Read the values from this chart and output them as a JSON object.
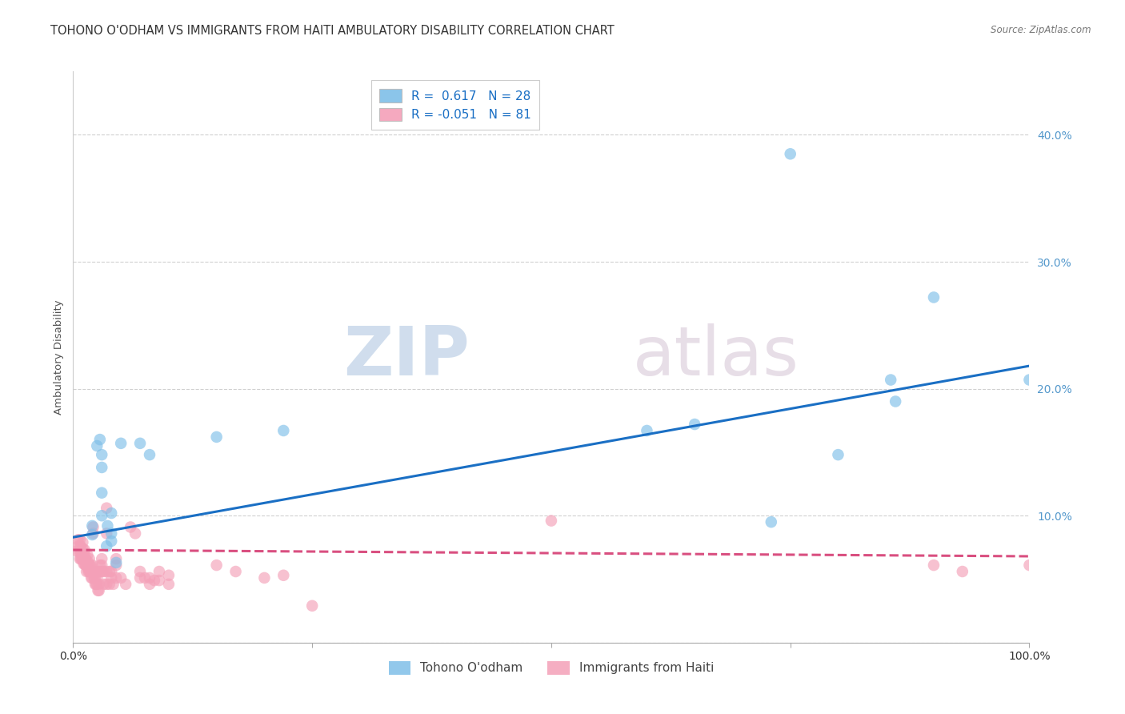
{
  "title": "TOHONO O'ODHAM VS IMMIGRANTS FROM HAITI AMBULATORY DISABILITY CORRELATION CHART",
  "source": "Source: ZipAtlas.com",
  "ylabel": "Ambulatory Disability",
  "xlim": [
    0,
    1.0
  ],
  "ylim": [
    0,
    0.45
  ],
  "xticks": [
    0.0,
    0.25,
    0.5,
    0.75,
    1.0
  ],
  "yticks": [
    0.0,
    0.1,
    0.2,
    0.3,
    0.4
  ],
  "xticklabels": [
    "0.0%",
    "",
    "",
    "",
    "100.0%"
  ],
  "yticklabels": [
    "",
    "10.0%",
    "20.0%",
    "30.0%",
    "40.0%"
  ],
  "legend_label1": "Tohono O'odham",
  "legend_label2": "Immigrants from Haiti",
  "blue_color": "#7fbfe8",
  "pink_color": "#f4a0b8",
  "blue_line_color": "#1a6fc4",
  "pink_line_color": "#d94f80",
  "tick_color": "#5599cc",
  "blue_scatter": [
    [
      0.02,
      0.085
    ],
    [
      0.02,
      0.092
    ],
    [
      0.025,
      0.155
    ],
    [
      0.028,
      0.16
    ],
    [
      0.03,
      0.1
    ],
    [
      0.03,
      0.118
    ],
    [
      0.03,
      0.138
    ],
    [
      0.03,
      0.148
    ],
    [
      0.035,
      0.076
    ],
    [
      0.036,
      0.092
    ],
    [
      0.04,
      0.08
    ],
    [
      0.04,
      0.086
    ],
    [
      0.04,
      0.102
    ],
    [
      0.045,
      0.063
    ],
    [
      0.05,
      0.157
    ],
    [
      0.07,
      0.157
    ],
    [
      0.08,
      0.148
    ],
    [
      0.15,
      0.162
    ],
    [
      0.22,
      0.167
    ],
    [
      0.6,
      0.167
    ],
    [
      0.65,
      0.172
    ],
    [
      0.73,
      0.095
    ],
    [
      0.75,
      0.385
    ],
    [
      0.8,
      0.148
    ],
    [
      0.855,
      0.207
    ],
    [
      0.86,
      0.19
    ],
    [
      0.9,
      0.272
    ],
    [
      1.0,
      0.207
    ]
  ],
  "pink_scatter": [
    [
      0.004,
      0.072
    ],
    [
      0.005,
      0.076
    ],
    [
      0.005,
      0.081
    ],
    [
      0.007,
      0.066
    ],
    [
      0.007,
      0.071
    ],
    [
      0.007,
      0.076
    ],
    [
      0.007,
      0.081
    ],
    [
      0.008,
      0.066
    ],
    [
      0.008,
      0.071
    ],
    [
      0.008,
      0.076
    ],
    [
      0.009,
      0.066
    ],
    [
      0.009,
      0.071
    ],
    [
      0.01,
      0.066
    ],
    [
      0.01,
      0.069
    ],
    [
      0.01,
      0.074
    ],
    [
      0.01,
      0.079
    ],
    [
      0.011,
      0.062
    ],
    [
      0.011,
      0.066
    ],
    [
      0.012,
      0.062
    ],
    [
      0.012,
      0.066
    ],
    [
      0.012,
      0.069
    ],
    [
      0.012,
      0.073
    ],
    [
      0.013,
      0.061
    ],
    [
      0.013,
      0.066
    ],
    [
      0.014,
      0.056
    ],
    [
      0.014,
      0.061
    ],
    [
      0.015,
      0.059
    ],
    [
      0.015,
      0.064
    ],
    [
      0.015,
      0.069
    ],
    [
      0.016,
      0.056
    ],
    [
      0.016,
      0.061
    ],
    [
      0.017,
      0.056
    ],
    [
      0.017,
      0.061
    ],
    [
      0.017,
      0.066
    ],
    [
      0.018,
      0.056
    ],
    [
      0.018,
      0.061
    ],
    [
      0.019,
      0.051
    ],
    [
      0.019,
      0.056
    ],
    [
      0.02,
      0.051
    ],
    [
      0.02,
      0.056
    ],
    [
      0.02,
      0.061
    ],
    [
      0.021,
      0.086
    ],
    [
      0.021,
      0.091
    ],
    [
      0.022,
      0.051
    ],
    [
      0.022,
      0.056
    ],
    [
      0.023,
      0.046
    ],
    [
      0.023,
      0.051
    ],
    [
      0.024,
      0.046
    ],
    [
      0.025,
      0.046
    ],
    [
      0.025,
      0.051
    ],
    [
      0.025,
      0.056
    ],
    [
      0.026,
      0.041
    ],
    [
      0.027,
      0.041
    ],
    [
      0.027,
      0.046
    ],
    [
      0.028,
      0.056
    ],
    [
      0.028,
      0.061
    ],
    [
      0.03,
      0.056
    ],
    [
      0.03,
      0.061
    ],
    [
      0.03,
      0.066
    ],
    [
      0.032,
      0.046
    ],
    [
      0.032,
      0.056
    ],
    [
      0.035,
      0.046
    ],
    [
      0.035,
      0.056
    ],
    [
      0.035,
      0.086
    ],
    [
      0.035,
      0.106
    ],
    [
      0.038,
      0.046
    ],
    [
      0.038,
      0.056
    ],
    [
      0.04,
      0.051
    ],
    [
      0.04,
      0.056
    ],
    [
      0.042,
      0.046
    ],
    [
      0.045,
      0.051
    ],
    [
      0.045,
      0.061
    ],
    [
      0.045,
      0.066
    ],
    [
      0.05,
      0.051
    ],
    [
      0.055,
      0.046
    ],
    [
      0.06,
      0.091
    ],
    [
      0.065,
      0.086
    ],
    [
      0.07,
      0.051
    ],
    [
      0.07,
      0.056
    ],
    [
      0.075,
      0.051
    ],
    [
      0.08,
      0.046
    ],
    [
      0.08,
      0.051
    ],
    [
      0.085,
      0.049
    ],
    [
      0.09,
      0.049
    ],
    [
      0.09,
      0.056
    ],
    [
      0.1,
      0.046
    ],
    [
      0.1,
      0.053
    ],
    [
      0.15,
      0.061
    ],
    [
      0.17,
      0.056
    ],
    [
      0.2,
      0.051
    ],
    [
      0.22,
      0.053
    ],
    [
      0.25,
      0.029
    ],
    [
      0.5,
      0.096
    ],
    [
      0.9,
      0.061
    ],
    [
      0.93,
      0.056
    ],
    [
      1.0,
      0.061
    ]
  ],
  "blue_line": {
    "x0": 0.0,
    "y0": 0.083,
    "x1": 1.0,
    "y1": 0.218
  },
  "pink_line": {
    "x0": 0.0,
    "y0": 0.073,
    "x1": 1.0,
    "y1": 0.068
  },
  "watermark_zip": "ZIP",
  "watermark_atlas": "atlas",
  "background_color": "#ffffff",
  "grid_color": "#d0d0d0",
  "title_fontsize": 10.5,
  "axis_label_fontsize": 9.5,
  "tick_fontsize": 10,
  "legend_fontsize": 11
}
